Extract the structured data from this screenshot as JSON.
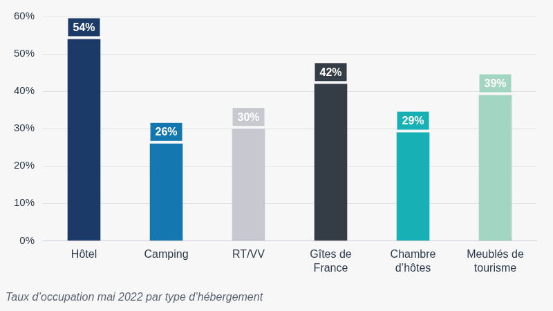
{
  "chart_data": {
    "type": "bar",
    "title": "Taux d’occupation mai 2022 par type d’hébergement",
    "categories": [
      "Hôtel",
      "Camping",
      "RT/VV",
      "Gîtes de France",
      "Chambre d’hôtes",
      "Meublés de tourisme"
    ],
    "values": [
      54,
      26,
      30,
      42,
      29,
      39
    ],
    "value_labels": [
      "54%",
      "26%",
      "30%",
      "42%",
      "29%",
      "39%"
    ],
    "colors": [
      "#1b3a67",
      "#1577b0",
      "#c8c9d0",
      "#343c46",
      "#17b0b5",
      "#a3d5c3"
    ],
    "ylim": [
      0,
      60
    ],
    "yticks": [
      {
        "value": 0,
        "label": "0%"
      },
      {
        "value": 10,
        "label": "10%"
      },
      {
        "value": 20,
        "label": "20%"
      },
      {
        "value": 30,
        "label": "30%"
      },
      {
        "value": 40,
        "label": "40%"
      },
      {
        "value": 50,
        "label": "50%"
      },
      {
        "value": 60,
        "label": "60%"
      }
    ],
    "grid": true,
    "data_labels": true
  }
}
